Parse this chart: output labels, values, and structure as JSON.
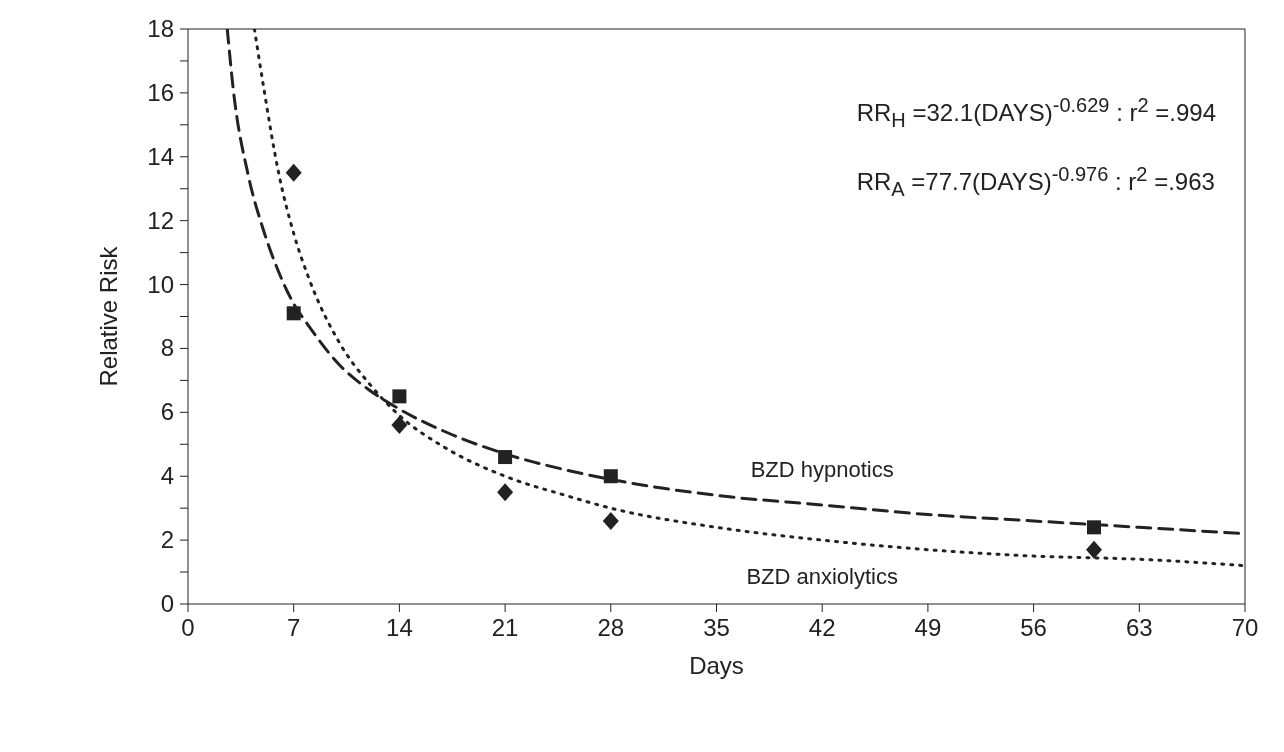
{
  "chart_data": {
    "type": "line",
    "xlabel": "Days",
    "ylabel": "Relative Risk",
    "xlim": [
      0,
      70
    ],
    "xticks": [
      0,
      7,
      14,
      21,
      28,
      35,
      42,
      49,
      56,
      63,
      70
    ],
    "ylim": [
      0,
      18
    ],
    "yticks": [
      0,
      {
        "value": 1,
        "label": null
      },
      2,
      {
        "value": 3,
        "label": null
      },
      4,
      {
        "value": 5,
        "label": null
      },
      6,
      {
        "value": 7,
        "label": null
      },
      8,
      {
        "value": 9,
        "label": null
      },
      10,
      {
        "value": 11,
        "label": null
      },
      12,
      {
        "value": 13,
        "label": null
      },
      14,
      {
        "value": 15,
        "label": null
      },
      16,
      {
        "value": 17,
        "label": null
      },
      18
    ],
    "grid": false,
    "annotations": [
      "RR$_{H}$ =32.1(DAYS)$^{-0.629}$ : r$^{2}$ =.994",
      "RR$_{A}$ =77.7(DAYS)$^{-0.976}$ : r$^{2}$ =.963"
    ],
    "series": [
      {
        "name": "BZD hypnotics",
        "line_style": "dashed",
        "marker": "none",
        "color": "#222222",
        "x": [
          2.6,
          3,
          4,
          5,
          6,
          7,
          8,
          10,
          12,
          14,
          17,
          21,
          25,
          28,
          35,
          42,
          49,
          56,
          63,
          70
        ],
        "values": [
          18,
          16.1,
          13.4,
          11.7,
          10.4,
          9.4,
          8.7,
          7.5,
          6.7,
          6.1,
          5.4,
          4.7,
          4.2,
          3.9,
          3.4,
          3.1,
          2.8,
          2.6,
          2.4,
          2.2
        ]
      },
      {
        "name": "BZD anxiolytics",
        "line_style": "dotted",
        "marker": "none",
        "color": "#222222",
        "x": [
          4.4,
          5,
          6,
          7,
          8,
          10,
          12,
          14,
          17,
          21,
          25,
          28,
          35,
          42,
          49,
          56,
          63,
          70
        ],
        "values": [
          18,
          16.2,
          13.5,
          11.6,
          10.2,
          8.2,
          6.9,
          5.9,
          4.9,
          4.0,
          3.4,
          3.0,
          2.4,
          2.0,
          1.7,
          1.5,
          1.4,
          1.2
        ]
      },
      {
        "type": "scatter",
        "marker": "square",
        "color": "#222222",
        "x": [
          7,
          14,
          21,
          28,
          60
        ],
        "values": [
          9.1,
          6.5,
          4.6,
          4.0,
          2.4
        ]
      },
      {
        "type": "scatter",
        "marker": "diamond",
        "color": "#222222",
        "x": [
          7,
          14,
          21,
          28,
          60
        ],
        "values": [
          13.5,
          5.6,
          3.5,
          2.6,
          1.7
        ]
      }
    ]
  }
}
